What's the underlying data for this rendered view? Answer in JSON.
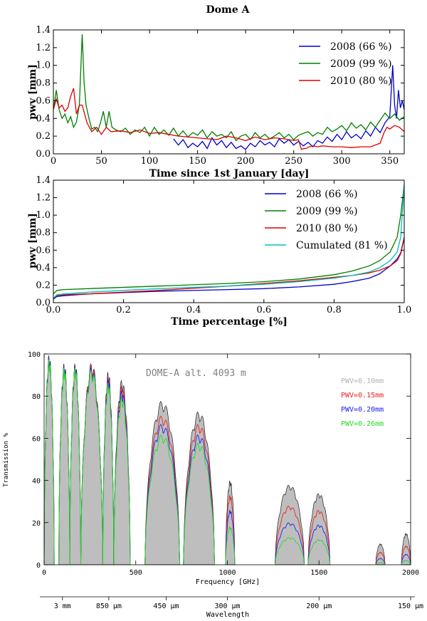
{
  "chart_data": [
    {
      "type": "line",
      "title": "Dome A",
      "xlabel": "Time since 1st January [day]",
      "ylabel": "pwv [mm]",
      "xlim": [
        0,
        365
      ],
      "ylim": [
        0,
        1.4
      ],
      "xticks": [
        0,
        50,
        100,
        150,
        200,
        250,
        300,
        350
      ],
      "xtick_labels": [
        "0",
        "50",
        "100",
        "150",
        "200",
        "250",
        "300",
        "350"
      ],
      "yticks": [
        0,
        0.2,
        0.4,
        0.6,
        0.8,
        1.0,
        1.2,
        1.4
      ],
      "ytick_labels": [
        "0.0",
        "0.2",
        "0.4",
        "0.6",
        "0.8",
        "1.0",
        "1.2",
        "1.4"
      ],
      "legend_position": "top-right",
      "series": [
        {
          "name": "2008 (66 %)",
          "color": "#0000cc",
          "x": [
            125,
            130,
            135,
            140,
            145,
            150,
            155,
            160,
            165,
            170,
            175,
            180,
            185,
            190,
            195,
            200,
            205,
            210,
            215,
            220,
            225,
            230,
            235,
            240,
            245,
            250,
            255,
            260,
            265,
            270,
            275,
            280,
            285,
            290,
            295,
            300,
            305,
            310,
            315,
            320,
            325,
            330,
            335,
            340,
            345,
            350,
            353,
            355,
            357,
            359,
            361,
            363,
            365
          ],
          "y": [
            0.17,
            0.1,
            0.16,
            0.07,
            0.12,
            0.08,
            0.14,
            0.06,
            0.18,
            0.1,
            0.15,
            0.07,
            0.13,
            0.06,
            0.09,
            0.05,
            0.12,
            0.08,
            0.15,
            0.1,
            0.13,
            0.08,
            0.17,
            0.12,
            0.16,
            0.1,
            0.14,
            0.09,
            0.13,
            0.08,
            0.15,
            0.12,
            0.19,
            0.14,
            0.22,
            0.16,
            0.25,
            0.18,
            0.22,
            0.17,
            0.26,
            0.2,
            0.3,
            0.24,
            0.35,
            0.42,
            1.0,
            0.55,
            0.4,
            0.72,
            0.52,
            0.6,
            0.5
          ]
        },
        {
          "name": "2009 (99 %)",
          "color": "#007f00",
          "x": [
            0,
            3,
            6,
            9,
            12,
            15,
            18,
            21,
            24,
            27,
            30,
            32,
            34,
            37,
            40,
            43,
            46,
            49,
            52,
            55,
            58,
            61,
            65,
            70,
            75,
            80,
            85,
            90,
            95,
            100,
            105,
            110,
            115,
            120,
            125,
            130,
            135,
            140,
            145,
            150,
            155,
            160,
            165,
            170,
            175,
            180,
            185,
            190,
            195,
            200,
            205,
            210,
            215,
            220,
            225,
            230,
            235,
            240,
            245,
            250,
            255,
            260,
            265,
            270,
            275,
            280,
            285,
            290,
            295,
            300,
            305,
            310,
            315,
            320,
            325,
            330,
            335,
            340,
            345,
            350,
            355,
            360,
            365
          ],
          "y": [
            0.5,
            0.72,
            0.5,
            0.4,
            0.45,
            0.35,
            0.42,
            0.3,
            0.36,
            0.55,
            1.35,
            0.8,
            0.55,
            0.4,
            0.28,
            0.3,
            0.25,
            0.35,
            0.48,
            0.3,
            0.48,
            0.3,
            0.27,
            0.25,
            0.29,
            0.22,
            0.27,
            0.24,
            0.3,
            0.2,
            0.3,
            0.22,
            0.27,
            0.21,
            0.29,
            0.2,
            0.26,
            0.19,
            0.24,
            0.21,
            0.27,
            0.18,
            0.25,
            0.2,
            0.22,
            0.18,
            0.25,
            0.15,
            0.2,
            0.22,
            0.16,
            0.24,
            0.18,
            0.22,
            0.17,
            0.2,
            0.24,
            0.18,
            0.22,
            0.16,
            0.21,
            0.23,
            0.25,
            0.2,
            0.24,
            0.22,
            0.3,
            0.25,
            0.28,
            0.32,
            0.26,
            0.35,
            0.29,
            0.33,
            0.27,
            0.36,
            0.3,
            0.38,
            0.46,
            0.4,
            0.45,
            0.38,
            0.42
          ]
        },
        {
          "name": "2010 (80 %)",
          "color": "#dd0000",
          "x": [
            0,
            3,
            6,
            9,
            12,
            15,
            18,
            21,
            24,
            27,
            30,
            35,
            40,
            45,
            50,
            55,
            60,
            70,
            80,
            90,
            100,
            110,
            120,
            130,
            140,
            150,
            160,
            170,
            180,
            190,
            200,
            210,
            220,
            230,
            240,
            250,
            255,
            258,
            261,
            263,
            266,
            270,
            275,
            280,
            290,
            300,
            310,
            320,
            330,
            335,
            340,
            344,
            347,
            350,
            355,
            360,
            365
          ],
          "y": [
            0.5,
            0.62,
            0.52,
            0.55,
            0.48,
            0.52,
            0.65,
            0.74,
            0.45,
            0.55,
            0.55,
            0.35,
            0.25,
            0.3,
            0.22,
            0.3,
            0.25,
            0.26,
            0.24,
            0.27,
            0.23,
            0.24,
            0.22,
            0.2,
            0.19,
            0.18,
            0.17,
            0.16,
            0.2,
            0.18,
            0.15,
            0.19,
            0.16,
            0.18,
            0.17,
            0.15,
            0.16,
            0.05,
            0.06,
            0.06,
            0.08,
            0.09,
            0.08,
            0.09,
            0.08,
            0.08,
            0.07,
            0.08,
            0.08,
            0.1,
            0.12,
            0.24,
            0.3,
            0.28,
            0.32,
            0.3,
            0.25
          ]
        }
      ]
    },
    {
      "type": "line",
      "title": "",
      "xlabel": "Time percentage [%]",
      "ylabel": "pwv [mm]",
      "xlim": [
        0,
        1
      ],
      "ylim": [
        0,
        1.4
      ],
      "xticks": [
        0,
        0.2,
        0.4,
        0.6,
        0.8,
        1.0
      ],
      "xtick_labels": [
        "0.0",
        "0.2",
        "0.4",
        "0.6",
        "0.8",
        "1.0"
      ],
      "yticks": [
        0,
        0.2,
        0.4,
        0.6,
        0.8,
        1.0,
        1.2,
        1.4
      ],
      "ytick_labels": [
        "0.0",
        "0.2",
        "0.4",
        "0.6",
        "0.8",
        "1.0",
        "1.2",
        "1.4"
      ],
      "legend_position": "top-right",
      "series": [
        {
          "name": "2008 (66 %)",
          "color": "#0000cc",
          "x": [
            0,
            0.01,
            0.03,
            0.1,
            0.3,
            0.5,
            0.6,
            0.7,
            0.8,
            0.85,
            0.9,
            0.93,
            0.96,
            0.98,
            0.99,
            1.0
          ],
          "y": [
            0.04,
            0.07,
            0.08,
            0.1,
            0.13,
            0.15,
            0.16,
            0.18,
            0.21,
            0.24,
            0.28,
            0.33,
            0.42,
            0.5,
            0.57,
            0.75
          ]
        },
        {
          "name": "2009 (99 %)",
          "color": "#007f00",
          "x": [
            0,
            0.01,
            0.03,
            0.1,
            0.3,
            0.5,
            0.6,
            0.7,
            0.8,
            0.85,
            0.9,
            0.93,
            0.96,
            0.98,
            0.99,
            1.0
          ],
          "y": [
            0.1,
            0.14,
            0.15,
            0.16,
            0.19,
            0.22,
            0.24,
            0.27,
            0.32,
            0.36,
            0.42,
            0.48,
            0.58,
            0.75,
            1.0,
            1.35
          ]
        },
        {
          "name": "2010 (80 %)",
          "color": "#dd0000",
          "x": [
            0,
            0.01,
            0.03,
            0.1,
            0.3,
            0.5,
            0.6,
            0.7,
            0.8,
            0.85,
            0.9,
            0.93,
            0.96,
            0.98,
            0.99,
            1.0
          ],
          "y": [
            0.05,
            0.08,
            0.09,
            0.1,
            0.14,
            0.19,
            0.22,
            0.25,
            0.29,
            0.31,
            0.34,
            0.37,
            0.42,
            0.48,
            0.56,
            0.74
          ]
        },
        {
          "name": "Cumulated (81 %)",
          "color": "#00bfbf",
          "x": [
            0,
            0.01,
            0.03,
            0.1,
            0.3,
            0.5,
            0.6,
            0.7,
            0.8,
            0.85,
            0.9,
            0.93,
            0.96,
            0.98,
            0.99,
            1.0
          ],
          "y": [
            0.05,
            0.09,
            0.1,
            0.12,
            0.16,
            0.19,
            0.21,
            0.24,
            0.28,
            0.31,
            0.35,
            0.4,
            0.48,
            0.58,
            0.75,
            1.35
          ]
        }
      ]
    },
    {
      "type": "area",
      "title": "DOME-A alt. 4093 m",
      "xlabel": "Frequency [GHz]",
      "ylabel": "Transmission %",
      "xlim": [
        0,
        2000
      ],
      "ylim": [
        0,
        100
      ],
      "xticks": [
        0,
        500,
        1000,
        1500,
        2000
      ],
      "xtick_labels": [
        "0",
        "500",
        "1000",
        "1500",
        "2000"
      ],
      "yticks": [
        0,
        20,
        40,
        60,
        80,
        100
      ],
      "ytick_labels": [
        "0",
        "20",
        "40",
        "60",
        "80",
        "100"
      ],
      "secondary_axis": {
        "label": "Wavelength",
        "ticks": [
          {
            "label": "3 mm",
            "freq_ghz": 100
          },
          {
            "label": "850 μm",
            "freq_ghz": 353
          },
          {
            "label": "450 μm",
            "freq_ghz": 666
          },
          {
            "label": "300 μm",
            "freq_ghz": 1000
          },
          {
            "label": "200 μm",
            "freq_ghz": 1500
          },
          {
            "label": "150 μm",
            "freq_ghz": 2000
          }
        ]
      },
      "legend_position": "top-right",
      "series": [
        {
          "name": "PWV=0.10mm",
          "color": "#b4b4b4",
          "fill": "#bebebe",
          "line": "#222222",
          "windows": [
            [
              0,
              55,
              100
            ],
            [
              80,
              140,
              96
            ],
            [
              140,
              200,
              96
            ],
            [
              200,
              320,
              96
            ],
            [
              320,
              380,
              92
            ],
            [
              380,
              470,
              88
            ],
            [
              550,
              740,
              78
            ],
            [
              760,
              930,
              73
            ],
            [
              990,
              1040,
              40
            ],
            [
              1260,
              1420,
              38
            ],
            [
              1440,
              1560,
              34
            ],
            [
              1810,
              1860,
              10
            ],
            [
              1950,
              2000,
              15
            ]
          ]
        },
        {
          "name": "PWV=0.15mm",
          "color": "#ee2222",
          "windows": [
            [
              0,
              55,
              99
            ],
            [
              80,
              140,
              95
            ],
            [
              140,
              200,
              95
            ],
            [
              200,
              320,
              95
            ],
            [
              320,
              380,
              90
            ],
            [
              380,
              470,
              85
            ],
            [
              550,
              740,
              71
            ],
            [
              760,
              930,
              67
            ],
            [
              990,
              1040,
              33
            ],
            [
              1260,
              1420,
              28
            ],
            [
              1440,
              1560,
              26
            ],
            [
              1810,
              1860,
              6
            ],
            [
              1950,
              2000,
              9
            ]
          ]
        },
        {
          "name": "PWV=0.20mm",
          "color": "#2222ee",
          "windows": [
            [
              0,
              55,
              99
            ],
            [
              80,
              140,
              95
            ],
            [
              140,
              200,
              95
            ],
            [
              200,
              320,
              94
            ],
            [
              320,
              380,
              89
            ],
            [
              380,
              470,
              83
            ],
            [
              550,
              740,
              67
            ],
            [
              760,
              930,
              62
            ],
            [
              990,
              1040,
              26
            ],
            [
              1260,
              1420,
              20
            ],
            [
              1440,
              1560,
              19
            ],
            [
              1810,
              1860,
              3
            ],
            [
              1950,
              2000,
              5
            ]
          ]
        },
        {
          "name": "PWV=0.26mm",
          "color": "#22dd22",
          "windows": [
            [
              0,
              55,
              98
            ],
            [
              80,
              140,
              94
            ],
            [
              140,
              200,
              94
            ],
            [
              200,
              320,
              93
            ],
            [
              320,
              380,
              87
            ],
            [
              380,
              470,
              80
            ],
            [
              550,
              740,
              62
            ],
            [
              760,
              930,
              58
            ],
            [
              990,
              1040,
              18
            ],
            [
              1260,
              1420,
              13
            ],
            [
              1440,
              1560,
              12
            ],
            [
              1810,
              1860,
              1
            ],
            [
              1950,
              2000,
              2
            ]
          ]
        }
      ]
    }
  ]
}
